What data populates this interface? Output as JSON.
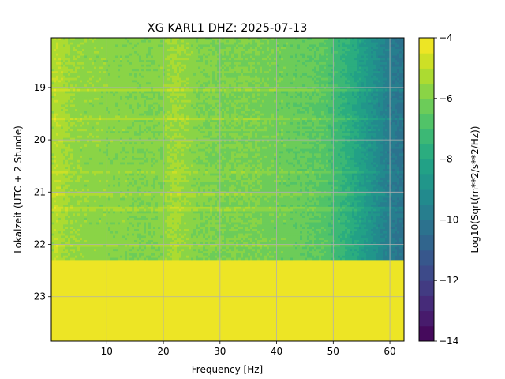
{
  "chart_data": {
    "type": "heatmap",
    "title": "XG KARL1  DHZ: 2025-07-13",
    "xlabel": "Frequency [Hz]",
    "ylabel": "Lokalzeit (UTC + 2 Stunde)",
    "xlim": [
      0.2,
      62.5
    ],
    "ylim": [
      23.85,
      18.05
    ],
    "x_ticks": [
      10,
      20,
      30,
      40,
      50,
      60
    ],
    "y_ticks": [
      19,
      20,
      21,
      22,
      23
    ],
    "grid": true,
    "data_end_time": 22.3,
    "fill_value_after_end": -4,
    "frequency_profile": {
      "freq": [
        0.2,
        1,
        2,
        4,
        6,
        8,
        10,
        13,
        15,
        18,
        20,
        21,
        22,
        24,
        26,
        30,
        35,
        40,
        45,
        47,
        49,
        50,
        52,
        54,
        56,
        58,
        60,
        62.5
      ],
      "level": [
        -5.4,
        -5.0,
        -5.3,
        -5.6,
        -5.7,
        -5.7,
        -5.8,
        -5.8,
        -5.9,
        -5.9,
        -5.8,
        -5.5,
        -5.4,
        -5.6,
        -5.9,
        -6.0,
        -6.0,
        -6.2,
        -6.4,
        -6.5,
        -6.7,
        -7.1,
        -7.5,
        -8.0,
        -8.6,
        -9.2,
        -9.8,
        -10.2
      ]
    },
    "colorbar": {
      "label": "Log10(Sqrt(m**2/s**2/Hz))",
      "vmin": -14,
      "vmax": -4,
      "ticks": [
        -4,
        -6,
        -8,
        -10,
        -12,
        -14
      ],
      "levels": 20,
      "colormap": "viridis"
    }
  }
}
